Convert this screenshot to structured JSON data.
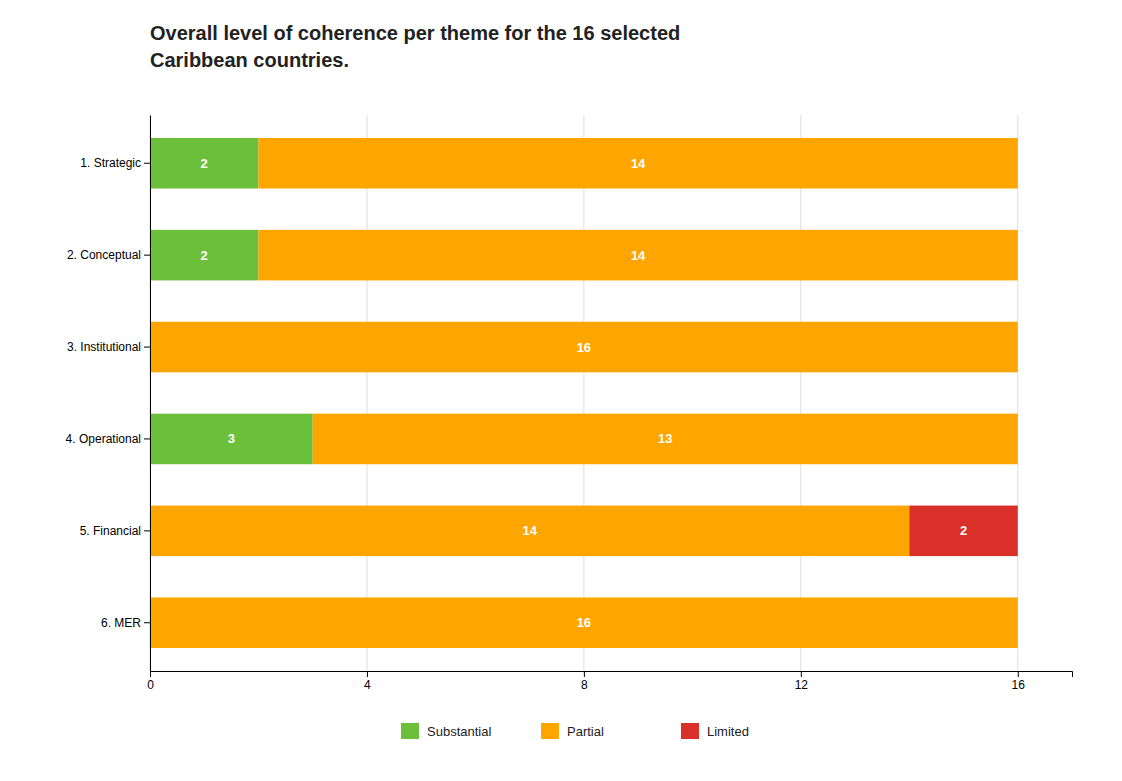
{
  "chart_data": {
    "type": "bar",
    "orientation": "horizontal",
    "stacked": true,
    "data_labels": true,
    "grid": true,
    "legend": "bottom",
    "title": "Overall level of coherence per theme for the 16 selected\nCaribbean countries.",
    "categories": [
      "1. Strategic",
      "2. Conceptual",
      "3. Institutional",
      "4. Operational",
      "5. Financial",
      "6. MER"
    ],
    "series": [
      {
        "name": "Substantial",
        "color": "#6CBF3A",
        "values": [
          2,
          2,
          0,
          3,
          0,
          0
        ]
      },
      {
        "name": "Partial",
        "color": "#FFA500",
        "values": [
          14,
          14,
          16,
          13,
          14,
          16
        ]
      },
      {
        "name": "Limited",
        "color": "#D9302A",
        "values": [
          0,
          0,
          0,
          0,
          2,
          0
        ]
      }
    ],
    "xlim": [
      0,
      17
    ],
    "xticks": [
      0,
      4,
      8,
      12,
      16
    ]
  }
}
